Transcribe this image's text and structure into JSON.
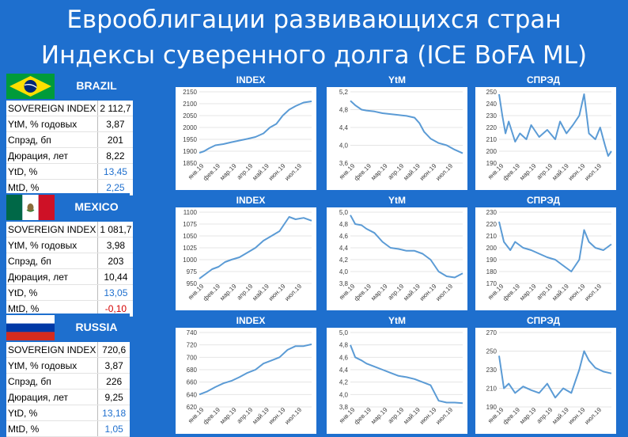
{
  "title_line1": "Еврооблигации развивающихся стран",
  "title_line2": "Индексы суверенного долга (ICE BoFA ML)",
  "chart_titles": {
    "index": "INDEX",
    "ytm": "YtM",
    "spread": "СПРЭД"
  },
  "stat_labels": {
    "sovereign": "SOVEREIGN INDEX",
    "ytm": "YtM, % годовых",
    "spread": "Спрэд, бп",
    "duration": "Дюрация, лет",
    "ytd": "YtD, %",
    "mtd": "MtD, %"
  },
  "month_labels": [
    "янв.19",
    "фев.19",
    "мар.19",
    "апр.19",
    "май.19",
    "июн.19",
    "июл.19"
  ],
  "colors": {
    "background": "#1e6fce",
    "line": "#5b9bd5",
    "positive": "#1e6fce",
    "negative": "#d40000"
  },
  "countries": [
    {
      "name": "BRAZIL",
      "flag": "brazil",
      "stats": {
        "sovereign": "2 112,7",
        "ytm": "3,87",
        "spread": "201",
        "duration": "8,22",
        "ytd": "13,45",
        "mtd": "2,25"
      }
    },
    {
      "name": "MEXICO",
      "flag": "mexico",
      "stats": {
        "sovereign": "1 081,7",
        "ytm": "3,98",
        "spread": "203",
        "duration": "10,44",
        "ytd": "13,05",
        "mtd": "-0,10"
      }
    },
    {
      "name": "RUSSIA",
      "flag": "russia",
      "stats": {
        "sovereign": "720,6",
        "ytm": "3,87",
        "spread": "226",
        "duration": "9,25",
        "ytd": "13,18",
        "mtd": "1,05"
      }
    }
  ],
  "chart_data": [
    {
      "type": "line",
      "country": "BRAZIL",
      "title": "INDEX",
      "ylim": [
        1850,
        2150
      ],
      "yticks": [
        1850,
        1900,
        1950,
        2000,
        2050,
        2100,
        2150
      ],
      "ytick_labels": [
        "1850",
        "1900",
        "1950",
        "2000",
        "2050",
        "2100",
        "2150"
      ],
      "x": [
        0,
        0.3,
        0.6,
        1,
        1.5,
        2,
        2.5,
        3,
        3.5,
        4,
        4.4,
        4.8,
        5.2,
        5.6,
        6,
        6.5,
        7
      ],
      "values": [
        1893,
        1900,
        1912,
        1925,
        1930,
        1938,
        1945,
        1952,
        1960,
        1975,
        2000,
        2015,
        2050,
        2075,
        2090,
        2105,
        2110
      ]
    },
    {
      "type": "line",
      "country": "BRAZIL",
      "title": "YtM",
      "ylim": [
        3.6,
        5.2
      ],
      "yticks": [
        3.6,
        4.0,
        4.4,
        4.8,
        5.2
      ],
      "ytick_labels": [
        "3,6",
        "4,0",
        "4,4",
        "4,8",
        "5,2"
      ],
      "x": [
        0,
        0.3,
        0.7,
        1,
        1.5,
        2,
        2.5,
        3,
        3.5,
        4,
        4.3,
        4.6,
        5,
        5.5,
        6,
        6.5,
        7
      ],
      "values": [
        5.0,
        4.9,
        4.8,
        4.78,
        4.76,
        4.72,
        4.7,
        4.68,
        4.66,
        4.62,
        4.5,
        4.3,
        4.15,
        4.05,
        4.0,
        3.9,
        3.82
      ]
    },
    {
      "type": "line",
      "country": "BRAZIL",
      "title": "СПРЭД",
      "ylim": [
        190,
        250
      ],
      "yticks": [
        190,
        200,
        210,
        220,
        230,
        240,
        250
      ],
      "ytick_labels": [
        "190",
        "200",
        "210",
        "220",
        "230",
        "240",
        "250"
      ],
      "x": [
        0,
        0.2,
        0.4,
        0.6,
        1,
        1.3,
        1.7,
        2,
        2.5,
        3,
        3.5,
        3.8,
        4.2,
        4.6,
        5,
        5.3,
        5.6,
        6,
        6.3,
        6.6,
        6.8,
        7
      ],
      "values": [
        248,
        230,
        215,
        225,
        208,
        215,
        210,
        222,
        212,
        218,
        210,
        225,
        215,
        222,
        230,
        248,
        215,
        210,
        220,
        205,
        196,
        200
      ]
    },
    {
      "type": "line",
      "country": "MEXICO",
      "title": "INDEX",
      "ylim": [
        950,
        1100
      ],
      "yticks": [
        950,
        975,
        1000,
        1025,
        1050,
        1075,
        1100
      ],
      "ytick_labels": [
        "950",
        "975",
        "1000",
        "1025",
        "1050",
        "1075",
        "1100"
      ],
      "x": [
        0,
        0.4,
        0.8,
        1.2,
        1.6,
        2,
        2.5,
        3,
        3.5,
        4,
        4.5,
        5,
        5.3,
        5.6,
        6,
        6.5,
        7
      ],
      "values": [
        960,
        970,
        980,
        985,
        995,
        1000,
        1005,
        1015,
        1025,
        1040,
        1050,
        1060,
        1075,
        1090,
        1085,
        1088,
        1082
      ]
    },
    {
      "type": "line",
      "country": "MEXICO",
      "title": "YtM",
      "ylim": [
        3.8,
        5.0
      ],
      "yticks": [
        3.8,
        4.0,
        4.2,
        4.4,
        4.6,
        4.8,
        5.0
      ],
      "ytick_labels": [
        "3,8",
        "4,0",
        "4,2",
        "4,4",
        "4,6",
        "4,8",
        "5,0"
      ],
      "x": [
        0,
        0.3,
        0.7,
        1,
        1.5,
        2,
        2.5,
        3,
        3.5,
        4,
        4.5,
        5,
        5.5,
        6,
        6.5,
        7
      ],
      "values": [
        4.95,
        4.8,
        4.78,
        4.72,
        4.65,
        4.5,
        4.4,
        4.38,
        4.35,
        4.35,
        4.3,
        4.2,
        4.0,
        3.92,
        3.9,
        3.97
      ]
    },
    {
      "type": "line",
      "country": "MEXICO",
      "title": "СПРЭД",
      "ylim": [
        170,
        230
      ],
      "yticks": [
        170,
        180,
        190,
        200,
        210,
        220,
        230
      ],
      "ytick_labels": [
        "170",
        "180",
        "190",
        "200",
        "210",
        "220",
        "230"
      ],
      "x": [
        0,
        0.3,
        0.7,
        1,
        1.5,
        2,
        2.5,
        3,
        3.5,
        4,
        4.5,
        5,
        5.3,
        5.6,
        6,
        6.5,
        7
      ],
      "values": [
        222,
        205,
        198,
        205,
        200,
        198,
        195,
        192,
        190,
        185,
        180,
        190,
        215,
        205,
        200,
        198,
        203
      ]
    },
    {
      "type": "line",
      "country": "RUSSIA",
      "title": "INDEX",
      "ylim": [
        620,
        740
      ],
      "yticks": [
        620,
        640,
        660,
        680,
        700,
        720,
        740
      ],
      "ytick_labels": [
        "620",
        "640",
        "660",
        "680",
        "700",
        "720",
        "740"
      ],
      "x": [
        0,
        0.5,
        1,
        1.5,
        2,
        2.5,
        3,
        3.5,
        4,
        4.5,
        5,
        5.5,
        6,
        6.5,
        7
      ],
      "values": [
        640,
        645,
        652,
        658,
        662,
        668,
        675,
        680,
        690,
        695,
        700,
        712,
        718,
        718,
        721
      ]
    },
    {
      "type": "line",
      "country": "RUSSIA",
      "title": "YtM",
      "ylim": [
        3.8,
        5.0
      ],
      "yticks": [
        3.8,
        4.0,
        4.2,
        4.4,
        4.6,
        4.8,
        5.0
      ],
      "ytick_labels": [
        "3,8",
        "4,0",
        "4,2",
        "4,4",
        "4,6",
        "4,8",
        "5,0"
      ],
      "x": [
        0,
        0.3,
        0.7,
        1,
        1.5,
        2,
        2.5,
        3,
        3.5,
        4,
        4.5,
        5,
        5.5,
        6,
        6.5,
        7
      ],
      "values": [
        4.8,
        4.6,
        4.55,
        4.5,
        4.45,
        4.4,
        4.35,
        4.3,
        4.28,
        4.25,
        4.2,
        4.15,
        3.9,
        3.87,
        3.87,
        3.86
      ]
    },
    {
      "type": "line",
      "country": "RUSSIA",
      "title": "СПРЭД",
      "ylim": [
        190,
        270
      ],
      "yticks": [
        190,
        210,
        230,
        250,
        270
      ],
      "ytick_labels": [
        "190",
        "210",
        "230",
        "250",
        "270"
      ],
      "x": [
        0,
        0.3,
        0.6,
        1,
        1.5,
        2,
        2.5,
        3,
        3.5,
        4,
        4.5,
        5,
        5.3,
        5.6,
        6,
        6.5,
        7
      ],
      "values": [
        245,
        210,
        215,
        205,
        212,
        208,
        205,
        215,
        200,
        210,
        205,
        230,
        250,
        240,
        232,
        228,
        226
      ]
    }
  ]
}
